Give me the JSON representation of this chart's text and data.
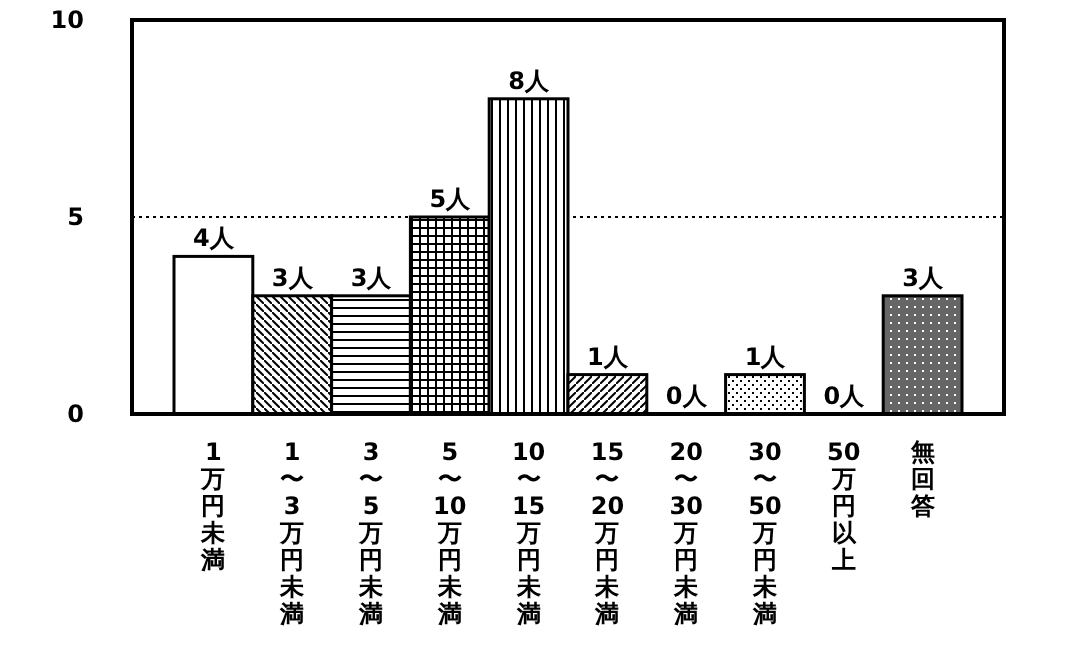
{
  "chart_data": {
    "type": "bar",
    "categories": [
      "1万円未満",
      "1〜3万円未満",
      "3〜5万円未満",
      "5〜10万円未満",
      "10〜15万円未満",
      "15〜20万円未満",
      "20〜30万円未満",
      "30〜50万円未満",
      "50万円以上",
      "無回答"
    ],
    "values": [
      4,
      3,
      3,
      5,
      8,
      1,
      0,
      1,
      0,
      3
    ],
    "value_labels": [
      "4人",
      "3人",
      "3人",
      "5人",
      "8人",
      "1人",
      "0人",
      "1人",
      "0人",
      "3人"
    ],
    "colors": [
      "#ffffff",
      "#000000",
      "#000000",
      "#000000",
      "#000000",
      "#000000",
      "#000000",
      "#000000",
      "#000000",
      "#000000"
    ],
    "ylim": [
      0,
      10
    ],
    "yticks": [
      0,
      5,
      10
    ],
    "grid": false,
    "ref_lines": [
      {
        "axis": "y",
        "value": 5,
        "line_style": "dotted",
        "color": "#000000"
      }
    ]
  }
}
